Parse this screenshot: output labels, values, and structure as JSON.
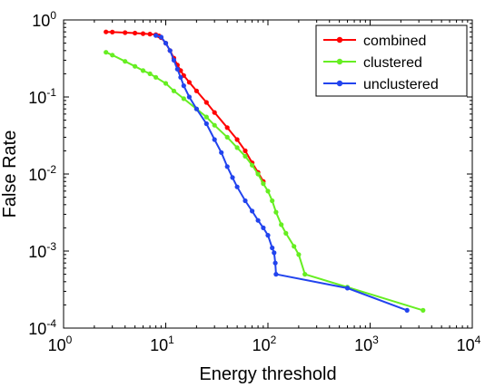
{
  "chart_data": {
    "type": "line",
    "xlabel": "Energy threshold",
    "ylabel": "False Rate",
    "x_scale": "log",
    "y_scale": "log",
    "xlim": [
      1,
      10000
    ],
    "ylim": [
      0.0001,
      1
    ],
    "x_ticks": [
      {
        "value": 1,
        "base": "10",
        "exp": "0"
      },
      {
        "value": 10,
        "base": "10",
        "exp": "1"
      },
      {
        "value": 100,
        "base": "10",
        "exp": "2"
      },
      {
        "value": 1000,
        "base": "10",
        "exp": "3"
      },
      {
        "value": 10000,
        "base": "10",
        "exp": "4"
      }
    ],
    "y_ticks": [
      {
        "value": 1,
        "base": "10",
        "exp": "0"
      },
      {
        "value": 0.1,
        "base": "10",
        "exp": "-1"
      },
      {
        "value": 0.01,
        "base": "10",
        "exp": "-2"
      },
      {
        "value": 0.001,
        "base": "10",
        "exp": "-3"
      },
      {
        "value": 0.0001,
        "base": "10",
        "exp": "-4"
      }
    ],
    "grid": false,
    "legend_position": "top-right",
    "series": [
      {
        "name": "combined",
        "color": "#ff0000",
        "points": [
          [
            2.6,
            0.7
          ],
          [
            3,
            0.695
          ],
          [
            4,
            0.685
          ],
          [
            5,
            0.675
          ],
          [
            6,
            0.665
          ],
          [
            7,
            0.655
          ],
          [
            8,
            0.645
          ],
          [
            8.6,
            0.62
          ],
          [
            9,
            0.59
          ],
          [
            10,
            0.5
          ],
          [
            11,
            0.4
          ],
          [
            12,
            0.32
          ],
          [
            13,
            0.26
          ],
          [
            14,
            0.22
          ],
          [
            15,
            0.19
          ],
          [
            17,
            0.155
          ],
          [
            20,
            0.12
          ],
          [
            25,
            0.085
          ],
          [
            30,
            0.063
          ],
          [
            40,
            0.04
          ],
          [
            50,
            0.028
          ],
          [
            60,
            0.02
          ],
          [
            70,
            0.014
          ],
          [
            80,
            0.0105
          ],
          [
            90,
            0.008
          ]
        ]
      },
      {
        "name": "clustered",
        "color": "#66ee22",
        "points": [
          [
            2.6,
            0.38
          ],
          [
            3,
            0.35
          ],
          [
            4,
            0.29
          ],
          [
            5,
            0.25
          ],
          [
            6,
            0.22
          ],
          [
            7,
            0.2
          ],
          [
            8,
            0.18
          ],
          [
            10,
            0.15
          ],
          [
            12,
            0.12
          ],
          [
            15,
            0.095
          ],
          [
            20,
            0.07
          ],
          [
            25,
            0.055
          ],
          [
            30,
            0.043
          ],
          [
            40,
            0.03
          ],
          [
            50,
            0.022
          ],
          [
            60,
            0.017
          ],
          [
            70,
            0.013
          ],
          [
            80,
            0.01
          ],
          [
            90,
            0.0075
          ],
          [
            100,
            0.006
          ],
          [
            110,
            0.0045
          ],
          [
            120,
            0.0032
          ],
          [
            135,
            0.0022
          ],
          [
            150,
            0.0017
          ],
          [
            180,
            0.00115
          ],
          [
            200,
            0.0009
          ],
          [
            230,
            0.0005
          ],
          [
            600,
            0.00034
          ],
          [
            3300,
            0.00017
          ]
        ]
      },
      {
        "name": "unclustered",
        "color": "#2244ee",
        "points": [
          [
            8,
            0.63
          ],
          [
            9,
            0.6
          ],
          [
            10,
            0.5
          ],
          [
            11,
            0.4
          ],
          [
            12,
            0.3
          ],
          [
            13,
            0.23
          ],
          [
            14,
            0.18
          ],
          [
            15,
            0.14
          ],
          [
            17,
            0.1
          ],
          [
            20,
            0.07
          ],
          [
            25,
            0.045
          ],
          [
            30,
            0.028
          ],
          [
            35,
            0.019
          ],
          [
            40,
            0.0125
          ],
          [
            45,
            0.009
          ],
          [
            50,
            0.0068
          ],
          [
            60,
            0.0045
          ],
          [
            70,
            0.0033
          ],
          [
            80,
            0.0025
          ],
          [
            90,
            0.002
          ],
          [
            100,
            0.0016
          ],
          [
            110,
            0.0011
          ],
          [
            115,
            0.00095
          ],
          [
            118,
            0.0007
          ],
          [
            120,
            0.0005
          ],
          [
            600,
            0.00033
          ],
          [
            2300,
            0.00017
          ]
        ]
      }
    ]
  }
}
